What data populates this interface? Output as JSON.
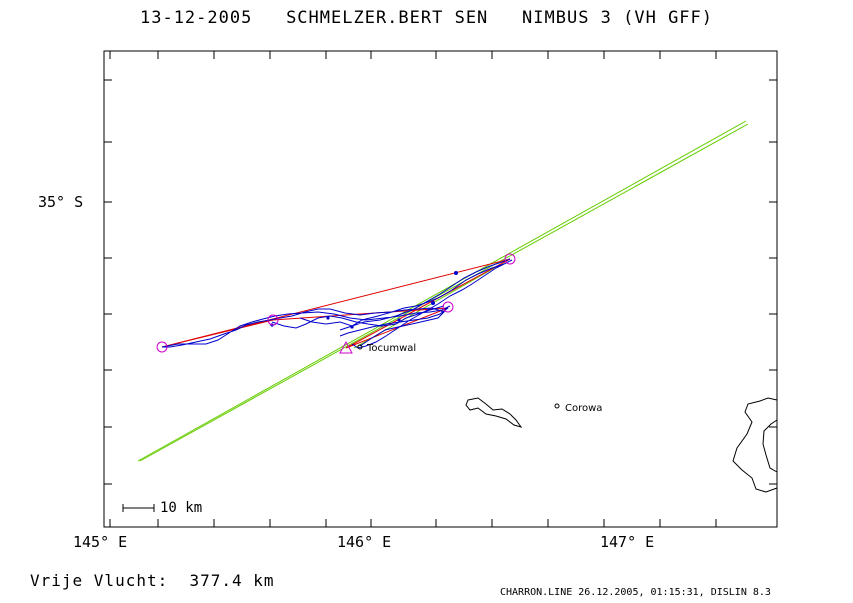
{
  "header": {
    "date": "13-12-2005",
    "pilot": "SCHMELZER.BERT SEN",
    "glider": "NIMBUS 3 (VH GFF)"
  },
  "axes": {
    "lat_label": "35° S",
    "lon_labels": [
      "145° E",
      "146° E",
      "147° E"
    ]
  },
  "places": [
    {
      "name": "Tocumwal"
    },
    {
      "name": "Corowa"
    }
  ],
  "scale_bar": {
    "label": "10 km"
  },
  "footer": {
    "distance_label": "Vrije Vlucht:",
    "distance_value": "377.4 km",
    "credit": "CHARRON.LINE 26.12.2005, 01:15:31, DISLIN 8.3"
  },
  "colors": {
    "track": "#0000cc",
    "task": "#e00000",
    "sector": "#66cc00",
    "turnpoint": "#cc00cc",
    "frame": "#000000"
  }
}
